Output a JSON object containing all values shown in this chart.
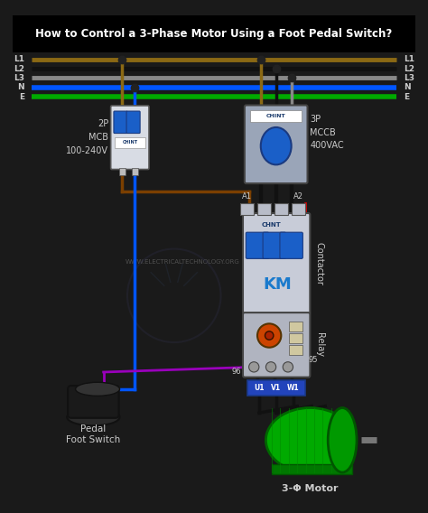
{
  "title": "How to Control a 3-Phase Motor Using a Foot Pedal Switch?",
  "bg_color": "#1a1a1a",
  "header_bg": "#000000",
  "wire_colors": {
    "L1": "#8B6914",
    "L2": "#111111",
    "L3": "#888888",
    "N": "#0055FF",
    "E": "#00AA00",
    "brown": "#7B3F00",
    "blue": "#0055FF",
    "red": "#DD0000",
    "purple": "#9900BB",
    "black": "#111111",
    "gray_wire": "#666666",
    "dark_yellow": "#AA8800"
  },
  "labels_left": [
    "L1",
    "L2",
    "L3",
    "N",
    "E"
  ],
  "labels_right": [
    "L1",
    "L2",
    "L3",
    "N",
    "E"
  ],
  "mcb_label_lines": [
    "2P",
    "MCB",
    "100-240V"
  ],
  "mccb_label_lines": [
    "3P",
    "MCCB",
    "400VAC"
  ],
  "contactor_label": "Contactor",
  "relay_label": "Relay",
  "km_label": "KM",
  "pedal_label_lines": [
    "Pedal",
    "Foot Switch"
  ],
  "motor_label": "3-Φ Motor",
  "watermark": "WWW.ELECTRICALTECHNOLOGY.ORG",
  "terminal_labels": [
    "U1",
    "V1",
    "W1"
  ],
  "a1_label": "A1",
  "a2_label": "A2",
  "t95": "95",
  "t96": "96"
}
